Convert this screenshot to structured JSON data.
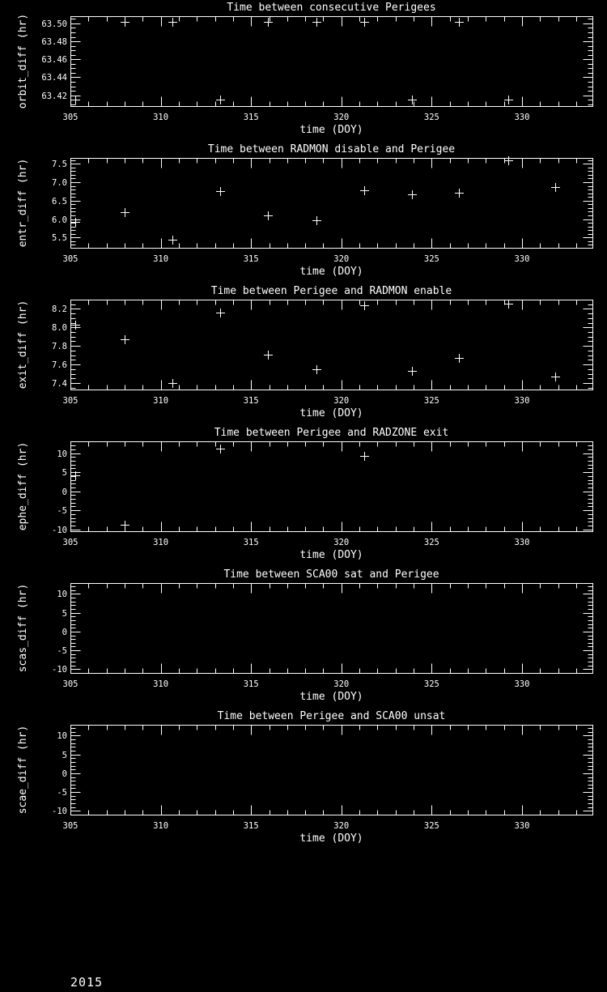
{
  "app": {
    "background_color": "#000000",
    "foreground_color": "#ffffff"
  },
  "footer": {
    "year": "2015"
  },
  "chart_data": [
    {
      "type": "scatter",
      "key": "orbit-diff",
      "title": "Time between consecutive Perigees",
      "xlabel": "time (DOY)",
      "ylabel": "orbit_diff (hr)",
      "marker": "plus",
      "grid": false,
      "xlim": [
        305,
        333.9
      ],
      "ylim": [
        63.408,
        63.508
      ],
      "xticks": [
        305,
        310,
        315,
        320,
        325,
        330
      ],
      "xtick_labels": [
        "305",
        "310",
        "315",
        "320",
        "325",
        "330"
      ],
      "xminor_step": 1,
      "yticks": [
        63.42,
        63.44,
        63.46,
        63.48,
        63.5
      ],
      "ytick_labels": [
        "63.42",
        "63.44",
        "63.46",
        "63.48",
        "63.50"
      ],
      "yminor_step": 0.005,
      "x": [
        305.29,
        308.02,
        310.65,
        313.29,
        315.94,
        318.6,
        321.25,
        323.89,
        326.52,
        329.23
      ],
      "y": [
        63.415,
        63.502,
        63.502,
        63.415,
        63.502,
        63.502,
        63.502,
        63.415,
        63.502,
        63.415
      ]
    },
    {
      "type": "scatter",
      "key": "entr-diff",
      "title": "Time between RADMON disable and Perigee",
      "xlabel": "time (DOY)",
      "ylabel": "entr_diff (hr)",
      "marker": "plus",
      "grid": false,
      "xlim": [
        305,
        333.9
      ],
      "ylim": [
        5.22,
        7.66
      ],
      "xticks": [
        305,
        310,
        315,
        320,
        325,
        330
      ],
      "xtick_labels": [
        "305",
        "310",
        "315",
        "320",
        "325",
        "330"
      ],
      "xminor_step": 1,
      "yticks": [
        5.5,
        6.0,
        6.5,
        7.0,
        7.5
      ],
      "ytick_labels": [
        "5.5",
        "6.0",
        "6.5",
        "7.0",
        "7.5"
      ],
      "yminor_step": 0.1,
      "x": [
        305.29,
        308.02,
        310.65,
        313.29,
        315.94,
        318.6,
        321.25,
        323.89,
        326.52,
        329.23,
        331.85
      ],
      "y": [
        5.93,
        6.18,
        5.43,
        6.75,
        6.1,
        5.96,
        6.78,
        6.67,
        6.72,
        7.6,
        6.86
      ]
    },
    {
      "type": "scatter",
      "key": "exit-diff",
      "title": "Time between Perigee and RADMON enable",
      "xlabel": "time (DOY)",
      "ylabel": "exit_diff (hr)",
      "marker": "plus",
      "grid": false,
      "xlim": [
        305,
        333.9
      ],
      "ylim": [
        7.33,
        8.3
      ],
      "xticks": [
        305,
        310,
        315,
        320,
        325,
        330
      ],
      "xtick_labels": [
        "305",
        "310",
        "315",
        "320",
        "325",
        "330"
      ],
      "xminor_step": 1,
      "yticks": [
        7.4,
        7.6,
        7.8,
        8.0,
        8.2
      ],
      "ytick_labels": [
        "7.4",
        "7.6",
        "7.8",
        "8.0",
        "8.2"
      ],
      "yminor_step": 0.05,
      "x": [
        305.29,
        308.02,
        310.65,
        313.29,
        315.94,
        318.6,
        321.25,
        323.89,
        326.52,
        329.23,
        331.85
      ],
      "y": [
        8.03,
        7.87,
        7.4,
        8.16,
        7.71,
        7.55,
        8.24,
        7.53,
        7.67,
        8.26,
        7.47
      ]
    },
    {
      "type": "scatter",
      "key": "ephe-diff",
      "title": "Time between Perigee and RADZONE exit",
      "xlabel": "time (DOY)",
      "ylabel": "ephe_diff (hr)",
      "marker": "plus",
      "grid": false,
      "xlim": [
        305,
        333.9
      ],
      "ylim": [
        -10.5,
        13.1
      ],
      "xticks": [
        305,
        310,
        315,
        320,
        325,
        330
      ],
      "xtick_labels": [
        "305",
        "310",
        "315",
        "320",
        "325",
        "330"
      ],
      "xminor_step": 1,
      "yticks": [
        -10,
        -5,
        0,
        5,
        10
      ],
      "ytick_labels": [
        "-10",
        "-5",
        "0",
        "5",
        "10"
      ],
      "yminor_step": 1,
      "x": [
        305.29,
        308.02,
        313.29,
        321.25
      ],
      "y": [
        4.1,
        -8.7,
        11.1,
        9.3
      ]
    },
    {
      "type": "scatter",
      "key": "scas-diff",
      "title": "Time between SCA00 sat and Perigee",
      "xlabel": "time (DOY)",
      "ylabel": "scas_diff (hr)",
      "marker": "plus",
      "grid": false,
      "xlim": [
        305,
        333.9
      ],
      "ylim": [
        -11.0,
        12.9
      ],
      "xticks": [
        305,
        310,
        315,
        320,
        325,
        330
      ],
      "xtick_labels": [
        "305",
        "310",
        "315",
        "320",
        "325",
        "330"
      ],
      "xminor_step": 1,
      "yticks": [
        -10,
        -5,
        0,
        5,
        10
      ],
      "ytick_labels": [
        "-10",
        "-5",
        "0",
        "5",
        "10"
      ],
      "yminor_step": 1,
      "x": [],
      "y": []
    },
    {
      "type": "scatter",
      "key": "scae-diff",
      "title": "Time between Perigee and SCA00 unsat",
      "xlabel": "time (DOY)",
      "ylabel": "scae_diff (hr)",
      "marker": "plus",
      "grid": false,
      "xlim": [
        305,
        333.9
      ],
      "yticks": [
        -10,
        -5,
        0,
        5,
        10
      ],
      "ylim": [
        -11.0,
        12.9
      ],
      "xticks": [
        305,
        310,
        315,
        320,
        325,
        330
      ],
      "xtick_labels": [
        "305",
        "310",
        "315",
        "320",
        "325",
        "330"
      ],
      "xminor_step": 1,
      "ytick_labels": [
        "-10",
        "-5",
        "0",
        "5",
        "10"
      ],
      "yminor_step": 1,
      "x": [],
      "y": []
    }
  ]
}
